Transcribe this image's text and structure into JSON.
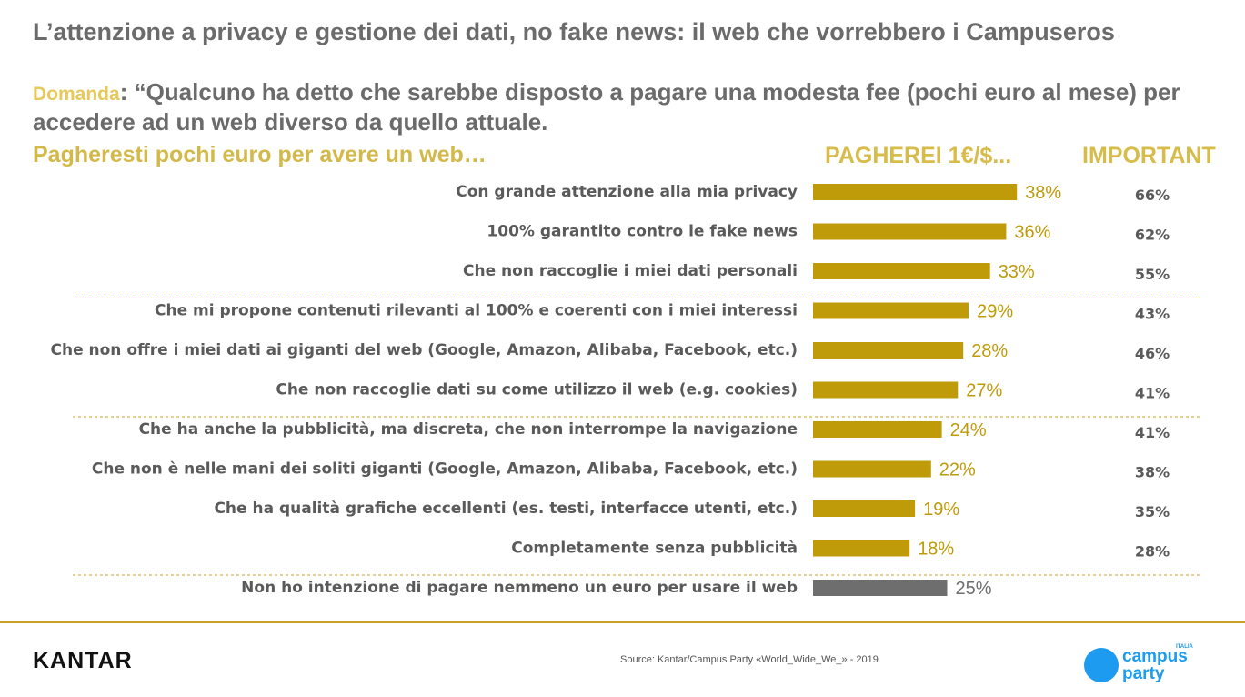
{
  "header": {
    "title": "L’attenzione a privacy e gestione dei dati, no fake news: il web che vorrebbero i Campuseros",
    "question_label": "Domanda",
    "question_text": ": “Qualcuno ha detto che sarebbe disposto a pagare una modesta fee (pochi euro al mese) per accedere ad un web diverso da quello attuale.",
    "subquestion": "Pagheresti pochi euro per avere un web…",
    "col_pay": "PAGHEREI 1€/$...",
    "col_important": "IMPORTANT"
  },
  "chart_data": {
    "type": "bar",
    "orientation": "horizontal",
    "categories": [
      "Con grande attenzione alla mia privacy",
      "100% garantito contro le fake news",
      "Che non raccoglie i miei dati personali",
      "Che mi propone contenuti rilevanti al 100% e coerenti con i miei interessi",
      "Che non offre i miei dati ai giganti del web (Google, Amazon, Alibaba, Facebook, etc.)",
      "Che non raccoglie dati su come utilizzo il web (e.g. cookies)",
      "Che ha anche la pubblicità, ma discreta, che non interrompe la navigazione",
      "Che non è nelle mani dei soliti giganti (Google, Amazon, Alibaba, Facebook, etc.)",
      "Che ha qualità grafiche eccellenti (es. testi, interfacce utenti, etc.)",
      "Completamente senza pubblicità",
      "Non ho intenzione di pagare nemmeno un euro per usare il web"
    ],
    "values": [
      38,
      36,
      33,
      29,
      28,
      27,
      24,
      22,
      19,
      18,
      25
    ],
    "value_labels": [
      "38%",
      "36%",
      "33%",
      "29%",
      "28%",
      "27%",
      "24%",
      "22%",
      "19%",
      "18%",
      "25%"
    ],
    "important_labels": [
      "66%",
      "62%",
      "55%",
      "43%",
      "46%",
      "41%",
      "41%",
      "38%",
      "35%",
      "28%"
    ],
    "bar_colors": [
      "#bf9b0a",
      "#bf9b0a",
      "#bf9b0a",
      "#bf9b0a",
      "#bf9b0a",
      "#bf9b0a",
      "#bf9b0a",
      "#bf9b0a",
      "#bf9b0a",
      "#bf9b0a",
      "#6e6e6e"
    ],
    "separator_after_index": [
      2,
      5,
      9
    ],
    "grid": false
  },
  "footer": {
    "brand": "KANTAR",
    "source": "Source: Kantar/Campus Party «World_Wide_We_» - 2019",
    "logo_line1": "campus",
    "logo_line2": "party",
    "logo_small": "ITALIA"
  },
  "colors": {
    "bar_gold": "#bf9b0a",
    "bar_grey": "#6e6e6e",
    "header_gold": "#d7bc4a",
    "logo_blue": "#1d9bf0"
  }
}
